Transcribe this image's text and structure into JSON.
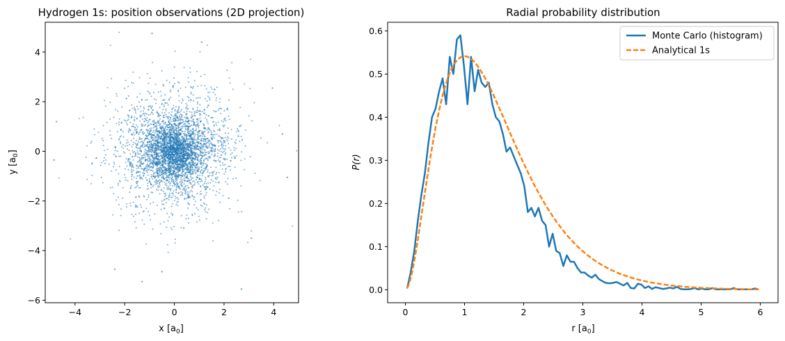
{
  "chart_data": [
    {
      "type": "scatter",
      "title": "Hydrogen 1s: position observations (2D projection)",
      "xlabel": "x [a",
      "xlabel_sub": "0",
      "xlabel_end": "]",
      "ylabel": "y [a",
      "ylabel_sub": "0",
      "ylabel_end": "]",
      "xlim": [
        -5.2,
        5.0
      ],
      "ylim": [
        -6.1,
        5.2
      ],
      "xticks": [
        -4,
        -2,
        0,
        2,
        4
      ],
      "yticks": [
        -6,
        -4,
        -2,
        0,
        2,
        4
      ],
      "point_color": "#1f77b4",
      "n_points": 4000,
      "distribution": "2D projection of 1s electron positions, radially symmetric, concentrated near origin",
      "notable_points": [
        {
          "x": -0.9,
          "y": 4.75
        },
        {
          "x": -1.3,
          "y": -5.25
        },
        {
          "x": 2.7,
          "y": -5.55
        },
        {
          "x": 4.55,
          "y": -1.05
        },
        {
          "x": -4.85,
          "y": -0.35
        },
        {
          "x": -4.75,
          "y": 1.2
        },
        {
          "x": 1.1,
          "y": 4.4
        },
        {
          "x": 4.35,
          "y": 0.7
        },
        {
          "x": 3.95,
          "y": 2.55
        },
        {
          "x": -2.4,
          "y": -4.75
        },
        {
          "x": -0.5,
          "y": -4.85
        },
        {
          "x": 3.1,
          "y": -3.5
        }
      ]
    },
    {
      "type": "line",
      "title": "Radial probability distribution",
      "xlabel": "r [a",
      "xlabel_sub": "0",
      "xlabel_end": "]",
      "ylabel": "P(r)",
      "xlim": [
        -0.3,
        6.3
      ],
      "ylim": [
        -0.03,
        0.62
      ],
      "xticks": [
        0,
        1,
        2,
        3,
        4,
        5,
        6
      ],
      "yticks": [
        0.0,
        0.1,
        0.2,
        0.3,
        0.4,
        0.5,
        0.6
      ],
      "legend_position": "top-right",
      "series": [
        {
          "name": "Monte Carlo (histogram)",
          "color": "#1f77b4",
          "style": "solid",
          "x": [
            0.03,
            0.09,
            0.15,
            0.21,
            0.27,
            0.33,
            0.39,
            0.45,
            0.51,
            0.57,
            0.63,
            0.69,
            0.75,
            0.81,
            0.87,
            0.93,
            0.99,
            1.05,
            1.11,
            1.17,
            1.23,
            1.29,
            1.35,
            1.41,
            1.47,
            1.53,
            1.59,
            1.65,
            1.71,
            1.77,
            1.83,
            1.89,
            1.95,
            2.01,
            2.07,
            2.13,
            2.19,
            2.25,
            2.31,
            2.37,
            2.43,
            2.49,
            2.55,
            2.61,
            2.67,
            2.73,
            2.79,
            2.85,
            2.91,
            2.97,
            3.03,
            3.09,
            3.15,
            3.21,
            3.27,
            3.33,
            3.39,
            3.45,
            3.51,
            3.57,
            3.63,
            3.69,
            3.75,
            3.81,
            3.87,
            3.93,
            3.99,
            4.05,
            4.11,
            4.17,
            4.23,
            4.29,
            4.35,
            4.41,
            4.47,
            4.53,
            4.59,
            4.65,
            4.71,
            4.77,
            4.83,
            4.89,
            4.95,
            5.01,
            5.07,
            5.13,
            5.19,
            5.25,
            5.31,
            5.37,
            5.43,
            5.49,
            5.55,
            5.61,
            5.67,
            5.73,
            5.79,
            5.85,
            5.91,
            5.97
          ],
          "values": [
            0.003,
            0.04,
            0.09,
            0.16,
            0.22,
            0.27,
            0.34,
            0.4,
            0.42,
            0.46,
            0.49,
            0.43,
            0.54,
            0.5,
            0.58,
            0.59,
            0.52,
            0.43,
            0.54,
            0.46,
            0.51,
            0.48,
            0.47,
            0.48,
            0.43,
            0.4,
            0.39,
            0.36,
            0.32,
            0.33,
            0.31,
            0.29,
            0.27,
            0.24,
            0.18,
            0.19,
            0.17,
            0.19,
            0.16,
            0.15,
            0.1,
            0.13,
            0.09,
            0.085,
            0.055,
            0.08,
            0.065,
            0.065,
            0.05,
            0.04,
            0.04,
            0.033,
            0.028,
            0.035,
            0.025,
            0.02,
            0.016,
            0.015,
            0.016,
            0.018,
            0.014,
            0.01,
            0.016,
            0.004,
            0.003,
            0.014,
            0.012,
            0.004,
            0.008,
            0.002,
            0.006,
            0.004,
            0.002,
            0.003,
            0.005,
            0.003,
            0.007,
            0.002,
            0.001,
            0.001,
            0.002,
            0.004,
            0.001,
            0.003,
            0.001,
            0.001,
            0.004,
            0.001,
            0.001,
            0.001,
            0.001,
            0.001,
            0.004,
            0.001,
            0.001,
            0.001,
            0.001,
            0.001,
            0.003,
            0.001
          ]
        },
        {
          "name": "Analytical 1s",
          "color": "#ff7f0e",
          "style": "dashed",
          "function": "4 r^2 exp(-2r)",
          "x_range": [
            0.03,
            6.0
          ]
        }
      ]
    }
  ]
}
